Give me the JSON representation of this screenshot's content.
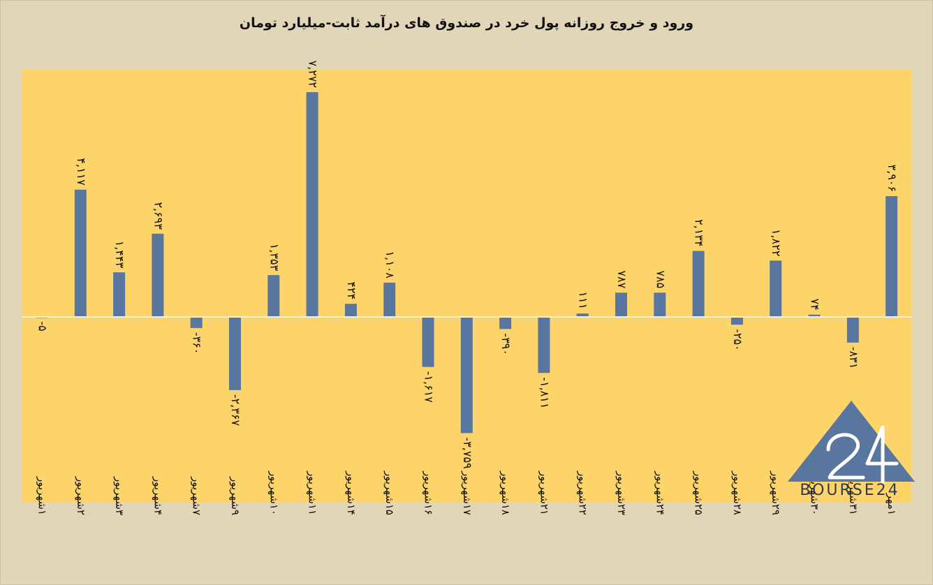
{
  "chart_data": {
    "type": "bar",
    "title": "ورود و خروج روزانه پول خرد در صندوق های درآمد ثابت-میلیارد تومان",
    "xlabel": "",
    "ylabel": "",
    "grid": false,
    "legend": "none",
    "ylim": [
      -4400,
      7900
    ],
    "colors": {
      "bar": "#5876a0",
      "plot_bg": "#fcd46a",
      "page_bg": "#e2d6b8",
      "zero_line": "#f3efe3"
    },
    "categories": [
      "۱شهریور",
      "۲شهریور",
      "۳شهریور",
      "۴شهریور",
      "۷شهریور",
      "۹شهریور",
      "۱۰شهریور",
      "۱۱شهریور",
      "۱۴شهریور",
      "۱۵شهریور",
      "۱۶شهریور",
      "۱۷شهریور",
      "۱۸شهریور",
      "۲۱شهریور",
      "۲۲شهریور",
      "۲۳شهریور",
      "۲۴شهریور",
      "۲۵شهریور",
      "۲۸شهریور",
      "۲۹شهریور",
      "۳۰شهریور",
      "۳۱شهریور",
      "۱مهر"
    ],
    "values": [
      -5,
      4117,
      1443,
      2693,
      -360,
      -2367,
      1353,
      7272,
      424,
      1108,
      -1617,
      -3759,
      -390,
      -1811,
      111,
      787,
      785,
      2134,
      -250,
      1822,
      74,
      -831,
      3906
    ],
    "data_labels": [
      "-۵",
      "۴,۱۱۷",
      "۱,۴۴۳",
      "۲,۶۹۳",
      "-۳۶۰",
      "-۲,۳۶۷",
      "۱,۳۵۳",
      "۷,۲۷۲",
      "۴۲۴",
      "۱,۱۰۸",
      "-۱,۶۱۷",
      "-۳,۷۵۹",
      "-۳۹۰",
      "-۱,۸۱۱",
      "۱۱۱",
      "۷۸۷",
      "۷۸۵",
      "۲,۱۳۴",
      "-۲۵۰",
      "۱,۸۲۲",
      "۷۴",
      "-۸۳۱",
      "۳,۹۰۶"
    ]
  },
  "logo": {
    "text": "BOURSE24",
    "icon": "triangle-24-logo-icon"
  }
}
